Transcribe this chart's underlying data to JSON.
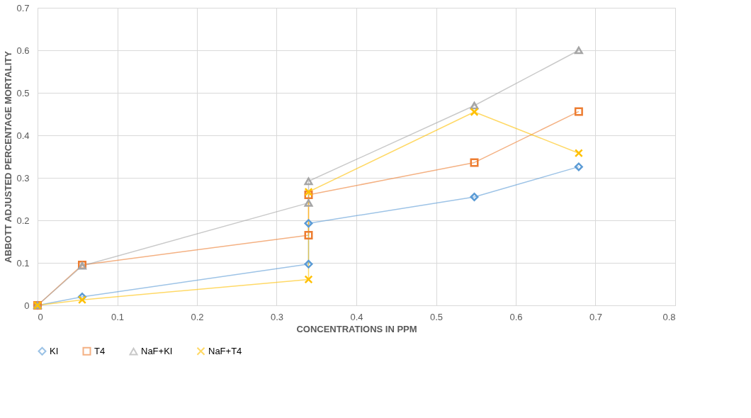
{
  "chart_data": {
    "type": "line",
    "xlabel": "CONCENTRATIONS IN PPM",
    "ylabel": "ABBOTT ADJUSTED PERCENTAGE MORTALITY",
    "xlim": [
      0,
      0.8
    ],
    "xticks": [
      0,
      0.1,
      0.2,
      0.3,
      0.4,
      0.5,
      0.6,
      0.7,
      0.8
    ],
    "ylim": [
      0,
      0.7
    ],
    "yticks": [
      0,
      0.1,
      0.2,
      0.3,
      0.4,
      0.5,
      0.6,
      0.7
    ],
    "grid": true,
    "legend": "bottom",
    "line_style": "solid",
    "series": [
      {
        "name": "KI",
        "color": "#5b9bd5",
        "marker": "diamond",
        "x": [
          0,
          0.056,
          0.34,
          0.34,
          0.548,
          0.679
        ],
        "values": [
          0,
          0.02,
          0.097,
          0.193,
          0.255,
          0.326
        ]
      },
      {
        "name": "T4",
        "color": "#ed7d31",
        "marker": "square",
        "x": [
          0,
          0.056,
          0.34,
          0.34,
          0.548,
          0.679
        ],
        "values": [
          0,
          0.095,
          0.165,
          0.26,
          0.336,
          0.456
        ]
      },
      {
        "name": "NaF+KI",
        "color": "#a5a5a5",
        "marker": "triangle",
        "x": [
          0,
          0.056,
          0.34,
          0.34,
          0.548,
          0.679
        ],
        "values": [
          0,
          0.093,
          0.241,
          0.292,
          0.47,
          0.6
        ]
      },
      {
        "name": "NaF+T4",
        "color": "#ffc000",
        "marker": "cross",
        "x": [
          0,
          0.056,
          0.34,
          0.34,
          0.548,
          0.679
        ],
        "values": [
          0,
          0.013,
          0.061,
          0.267,
          0.455,
          0.358
        ]
      }
    ]
  }
}
